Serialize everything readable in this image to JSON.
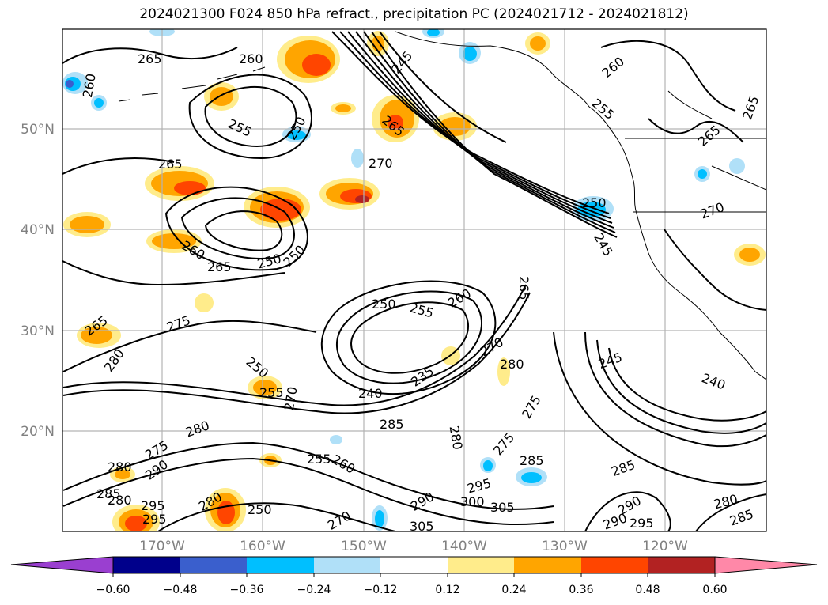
{
  "title": "2024021300 F024 850 hPa refract., precipitation PC (2024021712 - 2024021812)",
  "lat_labels": [
    "50°N",
    "40°N",
    "30°N",
    "20°N"
  ],
  "lon_labels": [
    "170°W",
    "160°W",
    "150°W",
    "140°W",
    "130°W",
    "120°W"
  ],
  "colorbar": {
    "ticks": [
      "−0.60",
      "−0.48",
      "−0.36",
      "−0.24",
      "−0.12",
      "0.12",
      "0.24",
      "0.36",
      "0.48",
      "0.60"
    ],
    "colors": [
      "#9a3fd0",
      "#00008b",
      "#3a5fcd",
      "#00bfff",
      "#b0e0f8",
      "#ffffff",
      "#ffec8b",
      "#ffa500",
      "#ff4500",
      "#b22222",
      "#ff88a8"
    ]
  },
  "contour_labels": [
    "265",
    "260",
    "260",
    "245",
    "260",
    "255",
    "265",
    "255",
    "250",
    "265",
    "270",
    "265",
    "250",
    "265",
    "250",
    "260",
    "265",
    "250",
    "245",
    "270",
    "250",
    "255",
    "260",
    "265",
    "265",
    "275",
    "280",
    "245",
    "240",
    "235",
    "270",
    "275",
    "280",
    "250",
    "255",
    "270",
    "240",
    "285",
    "280",
    "275",
    "285",
    "280",
    "255",
    "260",
    "285",
    "290",
    "275",
    "280",
    "290",
    "295",
    "300",
    "305",
    "250",
    "270",
    "305",
    "295",
    "280",
    "285",
    "290",
    "295",
    "280",
    "285",
    "290",
    "295",
    "280"
  ]
}
